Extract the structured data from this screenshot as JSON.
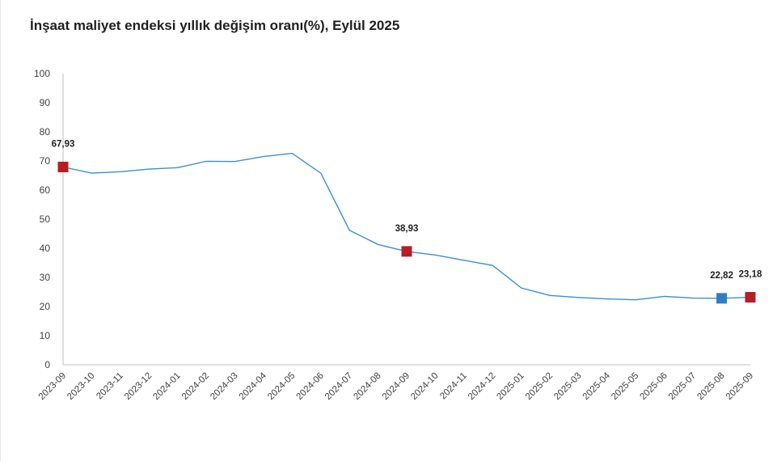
{
  "chart_data": {
    "type": "line",
    "title": "İnşaat maliyet endeksi yıllık değişim oranı(%), Eylül 2025",
    "xlabel": "",
    "ylabel": "",
    "ylim": [
      0,
      100
    ],
    "yticks": [
      "0",
      "10",
      "20",
      "30",
      "40",
      "50",
      "60",
      "70",
      "80",
      "90",
      "100"
    ],
    "grid": false,
    "categories": [
      "2023-09",
      "2023-10",
      "2023-11",
      "2023-12",
      "2024-01",
      "2024-02",
      "2024-03",
      "2024-04",
      "2024-05",
      "2024-06",
      "2024-07",
      "2024-08",
      "2024-09",
      "2024-10",
      "2024-11",
      "2024-12",
      "2025-01",
      "2025-02",
      "2025-03",
      "2025-04",
      "2025-05",
      "2025-06",
      "2025-07",
      "2025-08",
      "2025-09"
    ],
    "series": [
      {
        "values": [
          67.93,
          65.8,
          66.3,
          67.2,
          67.7,
          69.9,
          69.8,
          71.5,
          72.6,
          65.8,
          46.2,
          41.3,
          38.93,
          37.7,
          35.9,
          34.1,
          26.4,
          23.8,
          23.1,
          22.6,
          22.3,
          23.5,
          22.9,
          22.82,
          23.18
        ],
        "color": "#3d8fd0"
      }
    ],
    "markers": [
      {
        "index": 0,
        "label": "67,93",
        "color": "#b41e24"
      },
      {
        "index": 12,
        "label": "38,93",
        "color": "#b41e24"
      },
      {
        "index": 23,
        "label": "22,82",
        "color": "#2e7fc1"
      },
      {
        "index": 24,
        "label": "23,18",
        "color": "#b41e24"
      }
    ]
  }
}
